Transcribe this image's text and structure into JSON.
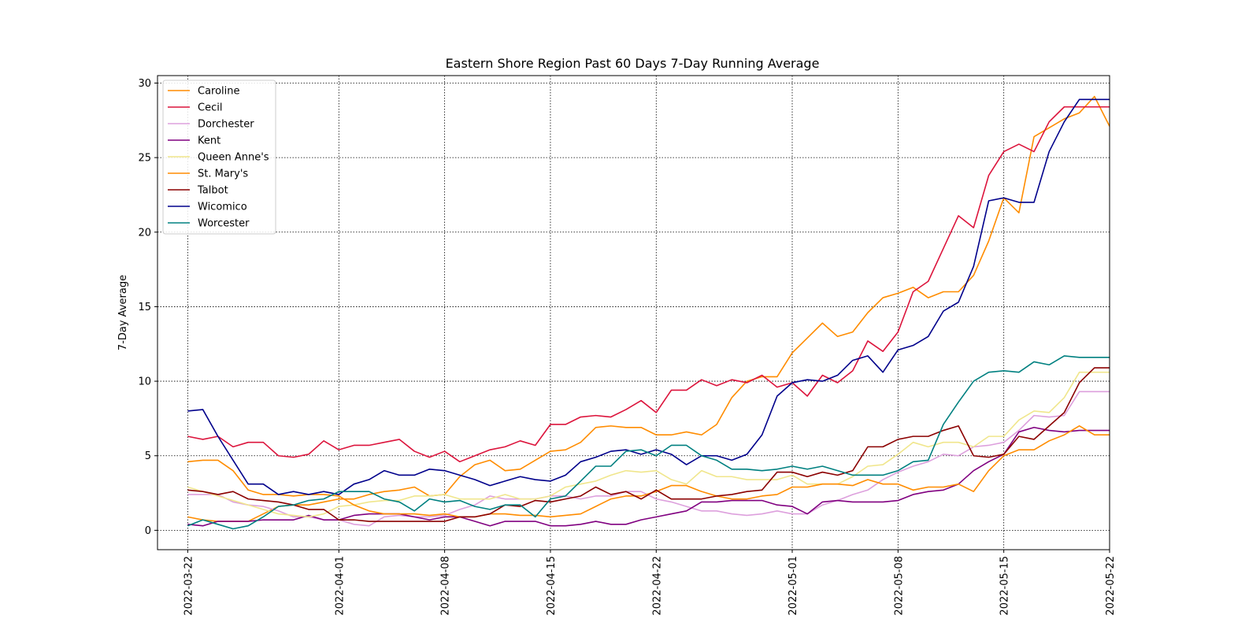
{
  "chart_data": {
    "type": "line",
    "title": "Eastern Shore Region Past 60 Days 7-Day Running Average",
    "xlabel": "",
    "ylabel": "7-Day Average",
    "x_start": "2022-03-22",
    "x_end": "2022-05-21",
    "xlim": [
      "2022-03-20",
      "2022-05-22"
    ],
    "ylim": [
      -1.3,
      30.5
    ],
    "x_ticks": [
      "2022-03-22",
      "2022-04-01",
      "2022-04-08",
      "2022-04-15",
      "2022-04-22",
      "2022-05-01",
      "2022-05-08",
      "2022-05-15",
      "2022-05-22"
    ],
    "y_ticks": [
      0,
      5,
      10,
      15,
      20,
      25,
      30
    ],
    "grid": true,
    "legend_position": "top-left",
    "series": [
      {
        "name": "Caroline",
        "color": "#ff8c00",
        "values": [
          0.9,
          0.7,
          0.6,
          0.6,
          0.6,
          1.1,
          1.6,
          1.7,
          1.7,
          1.9,
          2.1,
          2.1,
          2.4,
          2.6,
          2.7,
          2.9,
          2.3,
          2.4,
          3.6,
          4.4,
          4.7,
          4.0,
          4.1,
          4.7,
          5.3,
          5.4,
          5.9,
          6.9,
          7.0,
          6.9,
          6.9,
          6.4,
          6.4,
          6.6,
          6.4,
          7.1,
          8.9,
          10.0,
          10.3,
          10.3,
          11.9,
          12.9,
          13.9,
          13.0,
          13.3,
          14.6,
          15.6,
          15.9,
          16.3,
          15.6,
          16.0,
          16.0,
          17.1,
          19.4,
          22.3,
          21.3,
          26.4,
          27.0,
          27.6,
          28.0,
          29.1,
          27.1
        ]
      },
      {
        "name": "Cecil",
        "color": "#dc143c",
        "values": [
          6.3,
          6.1,
          6.3,
          5.6,
          5.9,
          5.9,
          5.0,
          4.9,
          5.1,
          6.0,
          5.4,
          5.7,
          5.7,
          5.9,
          6.1,
          5.3,
          4.9,
          5.3,
          4.6,
          5.0,
          5.4,
          5.6,
          6.0,
          5.7,
          7.1,
          7.1,
          7.6,
          7.7,
          7.6,
          8.1,
          8.7,
          7.9,
          9.4,
          9.4,
          10.1,
          9.7,
          10.1,
          9.9,
          10.4,
          9.6,
          9.9,
          9.0,
          10.4,
          9.9,
          10.7,
          12.7,
          12.0,
          13.3,
          16.0,
          16.7,
          18.9,
          21.1,
          20.3,
          23.8,
          25.4,
          25.9,
          25.4,
          27.4,
          28.4,
          28.4,
          28.4,
          28.4
        ]
      },
      {
        "name": "Dorchester",
        "color": "#dda0dd",
        "values": [
          2.4,
          2.4,
          2.4,
          1.9,
          1.7,
          1.6,
          1.3,
          0.9,
          0.9,
          0.7,
          0.7,
          0.4,
          0.3,
          0.9,
          1.0,
          0.9,
          0.9,
          1.0,
          1.4,
          1.7,
          2.3,
          2.1,
          2.1,
          2.1,
          2.3,
          2.3,
          2.1,
          2.3,
          2.3,
          2.6,
          2.6,
          2.1,
          1.9,
          1.6,
          1.3,
          1.3,
          1.1,
          1.0,
          1.1,
          1.3,
          1.1,
          1.1,
          1.7,
          2.0,
          2.4,
          2.7,
          3.4,
          3.9,
          4.3,
          4.6,
          5.1,
          5.0,
          5.6,
          5.7,
          5.9,
          6.7,
          7.7,
          7.6,
          7.7,
          9.3,
          9.3,
          9.3
        ]
      },
      {
        "name": "Kent",
        "color": "#800080",
        "values": [
          0.4,
          0.3,
          0.6,
          0.6,
          0.6,
          0.7,
          0.7,
          0.7,
          1.0,
          0.7,
          0.7,
          1.0,
          1.1,
          1.1,
          1.1,
          0.9,
          0.7,
          0.9,
          0.9,
          0.6,
          0.3,
          0.6,
          0.6,
          0.6,
          0.3,
          0.3,
          0.4,
          0.6,
          0.4,
          0.4,
          0.7,
          0.9,
          1.1,
          1.3,
          1.9,
          1.9,
          2.0,
          2.0,
          2.0,
          1.7,
          1.6,
          1.1,
          1.9,
          2.0,
          1.9,
          1.9,
          1.9,
          2.0,
          2.4,
          2.6,
          2.7,
          3.1,
          4.0,
          4.6,
          5.1,
          6.6,
          6.9,
          6.7,
          6.6,
          6.7,
          6.7,
          6.7
        ]
      },
      {
        "name": "Queen Anne's",
        "color": "#f0e68c",
        "values": [
          2.9,
          2.6,
          2.3,
          2.0,
          1.7,
          1.4,
          1.1,
          1.0,
          0.9,
          1.1,
          1.6,
          1.7,
          1.9,
          2.0,
          2.0,
          2.3,
          2.3,
          2.4,
          2.1,
          2.1,
          2.1,
          2.4,
          2.1,
          2.1,
          2.3,
          2.9,
          3.1,
          3.3,
          3.7,
          4.0,
          3.9,
          4.0,
          3.4,
          3.1,
          4.0,
          3.6,
          3.6,
          3.4,
          3.4,
          3.4,
          3.7,
          3.1,
          3.1,
          3.1,
          3.6,
          4.3,
          4.4,
          5.1,
          5.9,
          5.6,
          5.9,
          5.9,
          5.6,
          6.3,
          6.3,
          7.4,
          8.0,
          7.9,
          8.9,
          10.6,
          10.6,
          10.6
        ]
      },
      {
        "name": "St. Mary's",
        "color": "#ff8c00",
        "values": [
          4.6,
          4.7,
          4.7,
          4.0,
          2.7,
          2.4,
          2.4,
          2.3,
          2.4,
          2.4,
          2.3,
          1.7,
          1.3,
          1.1,
          1.1,
          1.1,
          1.0,
          1.1,
          0.9,
          0.9,
          1.1,
          1.1,
          1.0,
          1.0,
          0.9,
          1.0,
          1.1,
          1.6,
          2.1,
          2.3,
          2.3,
          2.6,
          3.0,
          3.0,
          2.6,
          2.3,
          2.1,
          2.1,
          2.3,
          2.4,
          2.9,
          2.9,
          3.1,
          3.1,
          3.0,
          3.4,
          3.1,
          3.1,
          2.7,
          2.9,
          2.9,
          3.1,
          2.6,
          4.0,
          5.0,
          5.4,
          5.4,
          6.0,
          6.4,
          7.0,
          6.4,
          6.4
        ]
      },
      {
        "name": "Talbot",
        "color": "#8b0000",
        "values": [
          2.7,
          2.6,
          2.4,
          2.6,
          2.1,
          2.0,
          1.9,
          1.7,
          1.4,
          1.4,
          0.7,
          0.7,
          0.6,
          0.6,
          0.6,
          0.6,
          0.6,
          0.6,
          0.9,
          0.9,
          1.1,
          1.7,
          1.6,
          2.0,
          1.9,
          2.1,
          2.3,
          2.9,
          2.4,
          2.6,
          2.1,
          2.7,
          2.1,
          2.1,
          2.1,
          2.3,
          2.4,
          2.6,
          2.7,
          3.9,
          3.9,
          3.6,
          3.9,
          3.7,
          4.0,
          5.6,
          5.6,
          6.1,
          6.3,
          6.3,
          6.7,
          7.0,
          5.0,
          4.9,
          5.1,
          6.3,
          6.1,
          7.0,
          7.9,
          9.9,
          10.9,
          10.9
        ]
      },
      {
        "name": "Wicomico",
        "color": "#00008b",
        "values": [
          8.0,
          8.1,
          6.3,
          4.7,
          3.1,
          3.1,
          2.4,
          2.6,
          2.4,
          2.6,
          2.4,
          3.1,
          3.4,
          4.0,
          3.7,
          3.7,
          4.1,
          4.0,
          3.7,
          3.4,
          3.0,
          3.3,
          3.6,
          3.4,
          3.3,
          3.7,
          4.6,
          4.9,
          5.3,
          5.4,
          5.1,
          5.4,
          5.1,
          4.4,
          5.0,
          5.0,
          4.7,
          5.1,
          6.4,
          9.0,
          9.9,
          10.1,
          10.0,
          10.4,
          11.4,
          11.7,
          10.6,
          12.1,
          12.4,
          13.0,
          14.7,
          15.3,
          17.7,
          22.1,
          22.3,
          22.0,
          22.0,
          25.4,
          27.4,
          28.9,
          28.9,
          28.9
        ]
      },
      {
        "name": "Worcester",
        "color": "#008080",
        "values": [
          0.3,
          0.7,
          0.4,
          0.1,
          0.3,
          0.9,
          1.6,
          1.7,
          2.0,
          2.1,
          2.6,
          2.6,
          2.6,
          2.1,
          1.9,
          1.3,
          2.1,
          1.9,
          2.0,
          1.6,
          1.4,
          1.7,
          1.7,
          0.9,
          2.1,
          2.3,
          3.3,
          4.3,
          4.3,
          5.3,
          5.4,
          5.0,
          5.7,
          5.7,
          5.0,
          4.7,
          4.1,
          4.1,
          4.0,
          4.1,
          4.3,
          4.1,
          4.3,
          4.0,
          3.7,
          3.7,
          3.7,
          4.0,
          4.6,
          4.7,
          7.1,
          8.6,
          10.0,
          10.6,
          10.7,
          10.6,
          11.3,
          11.1,
          11.7,
          11.6,
          11.6,
          11.6
        ]
      }
    ]
  }
}
